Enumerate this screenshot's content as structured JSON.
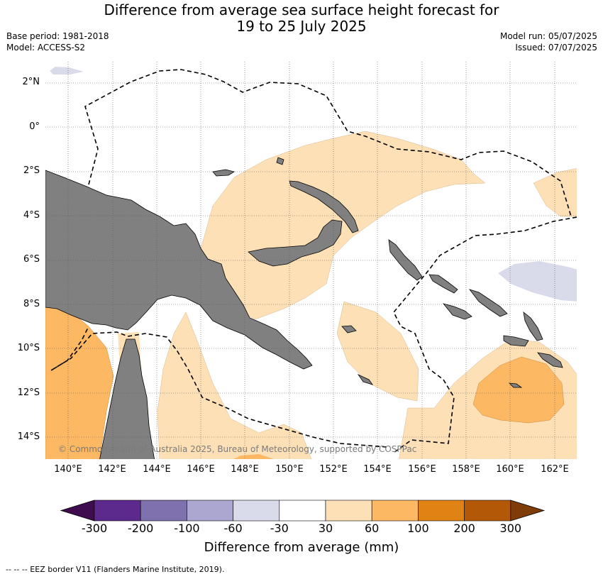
{
  "title_line1": "Difference from average sea surface height forecast for",
  "title_line2": "19 to 25 July 2025",
  "base_period": "Base period: 1981-2018",
  "model": "Model: ACCESS-S2",
  "model_run": "Model run: 05/07/2025",
  "issued": "Issued: 07/07/2025",
  "lat_labels": [
    "2°N",
    "0°",
    "2°S",
    "4°S",
    "6°S",
    "8°S",
    "10°S",
    "12°S",
    "14°S"
  ],
  "lon_labels": [
    "140°E",
    "142°E",
    "144°E",
    "146°E",
    "148°E",
    "150°E",
    "152°E",
    "154°E",
    "156°E",
    "158°E",
    "160°E",
    "162°E"
  ],
  "copyright": "© Commonwealth of Australia 2025, Bureau of Meteorology, supported by COSPPac",
  "colorbar": {
    "title": "Difference from average (mm)",
    "ticks": [
      "-300",
      "-200",
      "-100",
      "-60",
      "-30",
      "30",
      "60",
      "100",
      "200",
      "300"
    ],
    "colors": [
      "#3f0d4e",
      "#5b2a8c",
      "#7f70ae",
      "#aba7d1",
      "#d9dbea",
      "#ffffff",
      "#fee0b6",
      "#fdb863",
      "#e08214",
      "#b35806",
      "#7f3b08"
    ]
  },
  "footnote": "--  --  -- EEZ border V11 (Flanders Marine Institute, 2019)."
}
